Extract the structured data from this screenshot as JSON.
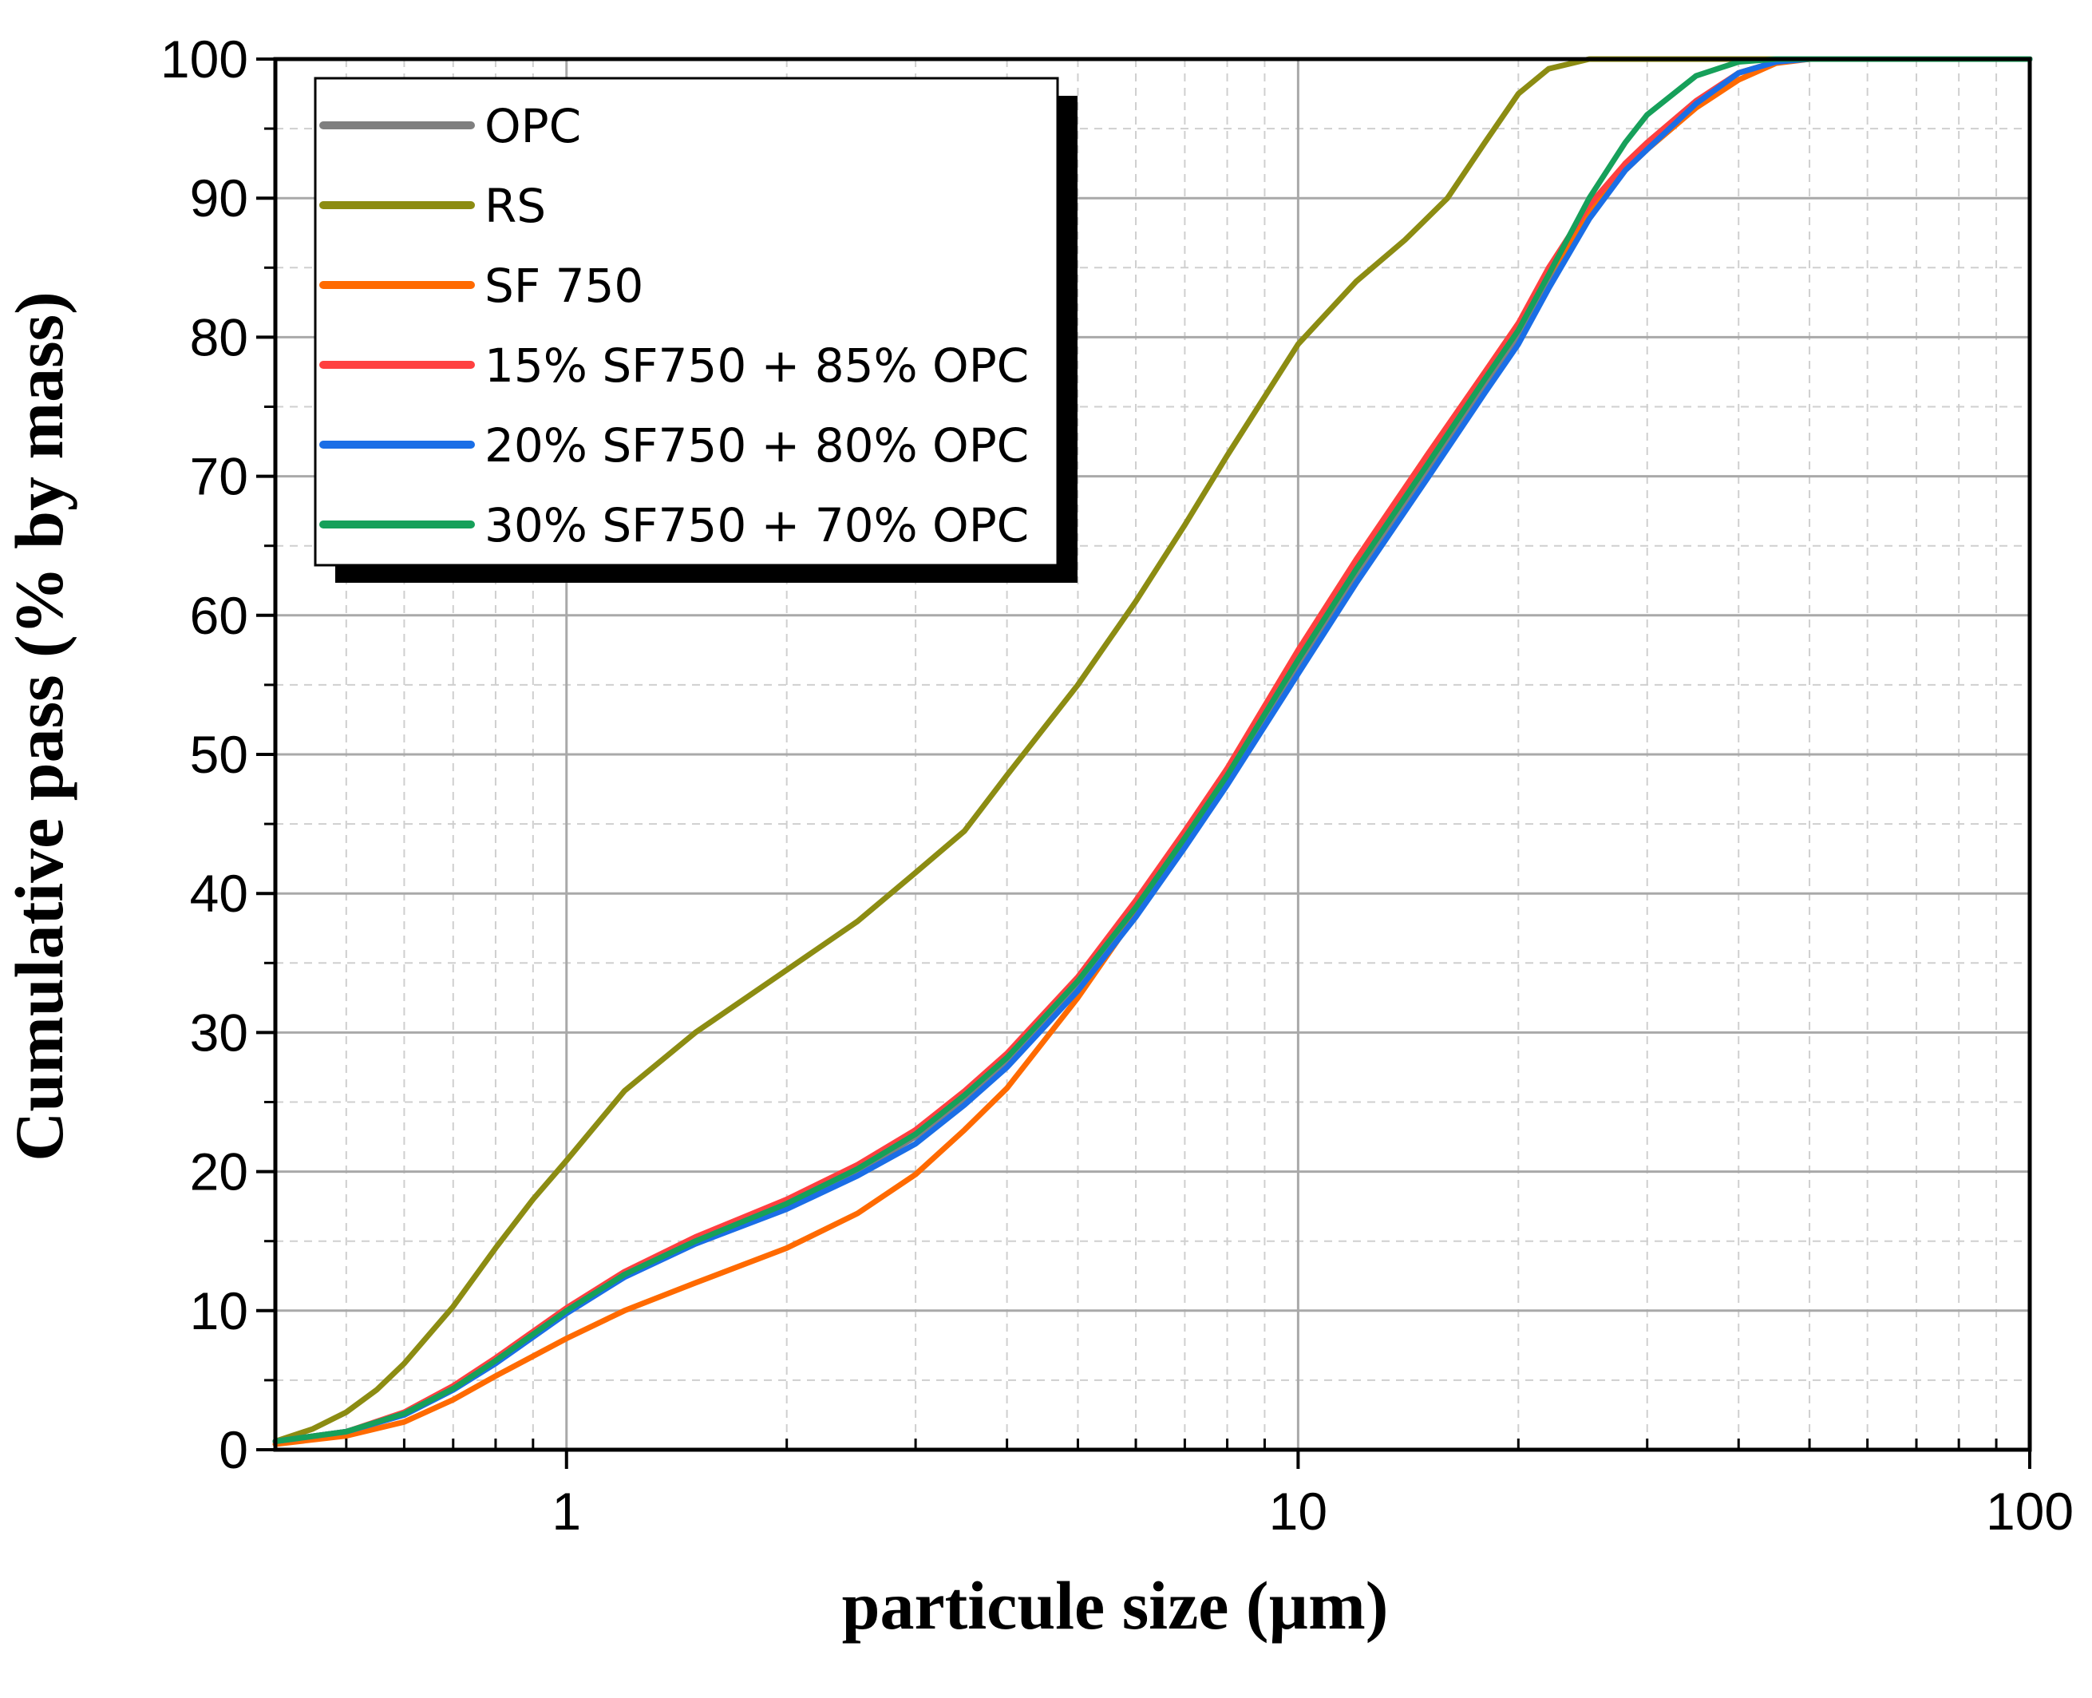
{
  "chart_data": {
    "type": "line",
    "title": "",
    "xlabel": "particule size (µm)",
    "ylabel": "Cumulative pass (% by  mass)",
    "xscale": "log",
    "xlim": [
      0.4,
      100
    ],
    "ylim": [
      0,
      100
    ],
    "xticks": [
      1,
      10,
      100
    ],
    "xtick_labels": [
      "1",
      "10",
      "100"
    ],
    "yticks": [
      0,
      10,
      20,
      30,
      40,
      50,
      60,
      70,
      80,
      90,
      100
    ],
    "ytick_labels": [
      "0",
      "10",
      "20",
      "30",
      "40",
      "50",
      "60",
      "70",
      "80",
      "90",
      "100"
    ],
    "grid": true,
    "legend_position": "top-left",
    "series": [
      {
        "name": "OPC",
        "color": "#7f7f7f",
        "points": [
          [
            0.4,
            0.6
          ],
          [
            0.5,
            1.3
          ],
          [
            0.6,
            2.6
          ],
          [
            0.7,
            4.4
          ],
          [
            0.8,
            6.3
          ],
          [
            1.0,
            10.0
          ],
          [
            1.2,
            12.6
          ],
          [
            1.5,
            15.0
          ],
          [
            2.0,
            17.5
          ],
          [
            2.5,
            20.0
          ],
          [
            3.0,
            22.5
          ],
          [
            3.5,
            25.3
          ],
          [
            4.0,
            28.0
          ],
          [
            5.0,
            33.5
          ],
          [
            6.0,
            39.0
          ],
          [
            7.0,
            44.0
          ],
          [
            8.0,
            48.5
          ],
          [
            10.0,
            56.5
          ],
          [
            12.0,
            63.0
          ],
          [
            15.0,
            70.5
          ],
          [
            18.0,
            76.5
          ],
          [
            20.0,
            80.0
          ],
          [
            22.0,
            84.0
          ],
          [
            25.0,
            89.0
          ],
          [
            28.0,
            92.5
          ],
          [
            30.0,
            94.0
          ],
          [
            35.0,
            97.0
          ],
          [
            40.0,
            99.0
          ],
          [
            45.0,
            99.8
          ],
          [
            50.0,
            100
          ],
          [
            100.0,
            100
          ]
        ]
      },
      {
        "name": "RS",
        "color": "#8c8c12",
        "points": [
          [
            0.4,
            0.6
          ],
          [
            0.45,
            1.5
          ],
          [
            0.5,
            2.7
          ],
          [
            0.55,
            4.3
          ],
          [
            0.6,
            6.2
          ],
          [
            0.7,
            10.3
          ],
          [
            0.8,
            14.5
          ],
          [
            0.9,
            18.0
          ],
          [
            1.0,
            20.8
          ],
          [
            1.2,
            25.8
          ],
          [
            1.5,
            30.0
          ],
          [
            2.0,
            34.5
          ],
          [
            2.5,
            38.0
          ],
          [
            3.0,
            41.5
          ],
          [
            3.5,
            44.5
          ],
          [
            4.0,
            48.5
          ],
          [
            5.0,
            55.0
          ],
          [
            6.0,
            61.0
          ],
          [
            7.0,
            66.5
          ],
          [
            8.0,
            71.5
          ],
          [
            10.0,
            79.5
          ],
          [
            12.0,
            84.0
          ],
          [
            14.0,
            87.0
          ],
          [
            16.0,
            90.0
          ],
          [
            18.0,
            94.0
          ],
          [
            20.0,
            97.5
          ],
          [
            22.0,
            99.3
          ],
          [
            25.0,
            100
          ],
          [
            100.0,
            100
          ]
        ]
      },
      {
        "name": "SF 750",
        "color": "#ff6a00",
        "points": [
          [
            0.4,
            0.4
          ],
          [
            0.5,
            1.0
          ],
          [
            0.6,
            2.0
          ],
          [
            0.7,
            3.6
          ],
          [
            0.8,
            5.3
          ],
          [
            1.0,
            8.0
          ],
          [
            1.2,
            10.0
          ],
          [
            1.5,
            12.0
          ],
          [
            2.0,
            14.5
          ],
          [
            2.5,
            17.0
          ],
          [
            3.0,
            19.8
          ],
          [
            3.5,
            23.0
          ],
          [
            4.0,
            26.0
          ],
          [
            5.0,
            32.5
          ],
          [
            6.0,
            38.5
          ],
          [
            7.0,
            44.0
          ],
          [
            8.0,
            49.0
          ],
          [
            10.0,
            57.5
          ],
          [
            12.0,
            64.0
          ],
          [
            15.0,
            71.5
          ],
          [
            18.0,
            77.5
          ],
          [
            20.0,
            81.0
          ],
          [
            22.0,
            84.5
          ],
          [
            25.0,
            89.0
          ],
          [
            28.0,
            92.0
          ],
          [
            30.0,
            93.5
          ],
          [
            35.0,
            96.5
          ],
          [
            40.0,
            98.5
          ],
          [
            45.0,
            99.7
          ],
          [
            50.0,
            100
          ],
          [
            100.0,
            100
          ]
        ]
      },
      {
        "name": "15% SF750 + 85% OPC",
        "color": "#ff4040",
        "points": [
          [
            0.4,
            0.6
          ],
          [
            0.5,
            1.3
          ],
          [
            0.6,
            2.7
          ],
          [
            0.7,
            4.6
          ],
          [
            0.8,
            6.6
          ],
          [
            1.0,
            10.2
          ],
          [
            1.2,
            12.8
          ],
          [
            1.5,
            15.3
          ],
          [
            2.0,
            18.0
          ],
          [
            2.5,
            20.5
          ],
          [
            3.0,
            23.0
          ],
          [
            3.5,
            25.8
          ],
          [
            4.0,
            28.5
          ],
          [
            5.0,
            34.0
          ],
          [
            6.0,
            39.5
          ],
          [
            7.0,
            44.5
          ],
          [
            8.0,
            49.0
          ],
          [
            10.0,
            57.5
          ],
          [
            12.0,
            64.0
          ],
          [
            15.0,
            71.5
          ],
          [
            18.0,
            77.5
          ],
          [
            20.0,
            81.0
          ],
          [
            22.0,
            85.0
          ],
          [
            25.0,
            89.5
          ],
          [
            28.0,
            92.5
          ],
          [
            30.0,
            94.0
          ],
          [
            35.0,
            97.0
          ],
          [
            40.0,
            99.0
          ],
          [
            45.0,
            99.8
          ],
          [
            50.0,
            100
          ],
          [
            100.0,
            100
          ]
        ]
      },
      {
        "name": "20% SF750 + 80% OPC",
        "color": "#1a6ee6",
        "points": [
          [
            0.4,
            0.6
          ],
          [
            0.5,
            1.3
          ],
          [
            0.6,
            2.5
          ],
          [
            0.7,
            4.3
          ],
          [
            0.8,
            6.2
          ],
          [
            1.0,
            9.8
          ],
          [
            1.2,
            12.4
          ],
          [
            1.5,
            14.8
          ],
          [
            2.0,
            17.3
          ],
          [
            2.5,
            19.7
          ],
          [
            3.0,
            22.0
          ],
          [
            3.5,
            24.8
          ],
          [
            4.0,
            27.5
          ],
          [
            5.0,
            33.0
          ],
          [
            6.0,
            38.3
          ],
          [
            7.0,
            43.3
          ],
          [
            8.0,
            47.8
          ],
          [
            10.0,
            55.8
          ],
          [
            12.0,
            62.3
          ],
          [
            15.0,
            69.8
          ],
          [
            18.0,
            76.0
          ],
          [
            20.0,
            79.5
          ],
          [
            22.0,
            83.5
          ],
          [
            25.0,
            88.5
          ],
          [
            28.0,
            92.0
          ],
          [
            30.0,
            93.5
          ],
          [
            35.0,
            96.8
          ],
          [
            40.0,
            99.0
          ],
          [
            45.0,
            99.8
          ],
          [
            50.0,
            100
          ],
          [
            100.0,
            100
          ]
        ]
      },
      {
        "name": "30% SF750 + 70% OPC",
        "color": "#16a05a",
        "points": [
          [
            0.4,
            0.6
          ],
          [
            0.5,
            1.3
          ],
          [
            0.6,
            2.6
          ],
          [
            0.7,
            4.4
          ],
          [
            0.8,
            6.4
          ],
          [
            1.0,
            10.0
          ],
          [
            1.2,
            12.6
          ],
          [
            1.5,
            15.0
          ],
          [
            2.0,
            17.7
          ],
          [
            2.5,
            20.2
          ],
          [
            3.0,
            22.7
          ],
          [
            3.5,
            25.5
          ],
          [
            4.0,
            28.2
          ],
          [
            5.0,
            33.7
          ],
          [
            6.0,
            39.0
          ],
          [
            7.0,
            44.0
          ],
          [
            8.0,
            48.5
          ],
          [
            10.0,
            56.8
          ],
          [
            12.0,
            63.3
          ],
          [
            15.0,
            70.8
          ],
          [
            18.0,
            77.0
          ],
          [
            20.0,
            80.5
          ],
          [
            22.0,
            84.5
          ],
          [
            25.0,
            90.0
          ],
          [
            28.0,
            94.0
          ],
          [
            30.0,
            96.0
          ],
          [
            35.0,
            98.8
          ],
          [
            40.0,
            99.8
          ],
          [
            45.0,
            100
          ],
          [
            100.0,
            100
          ]
        ]
      }
    ]
  }
}
